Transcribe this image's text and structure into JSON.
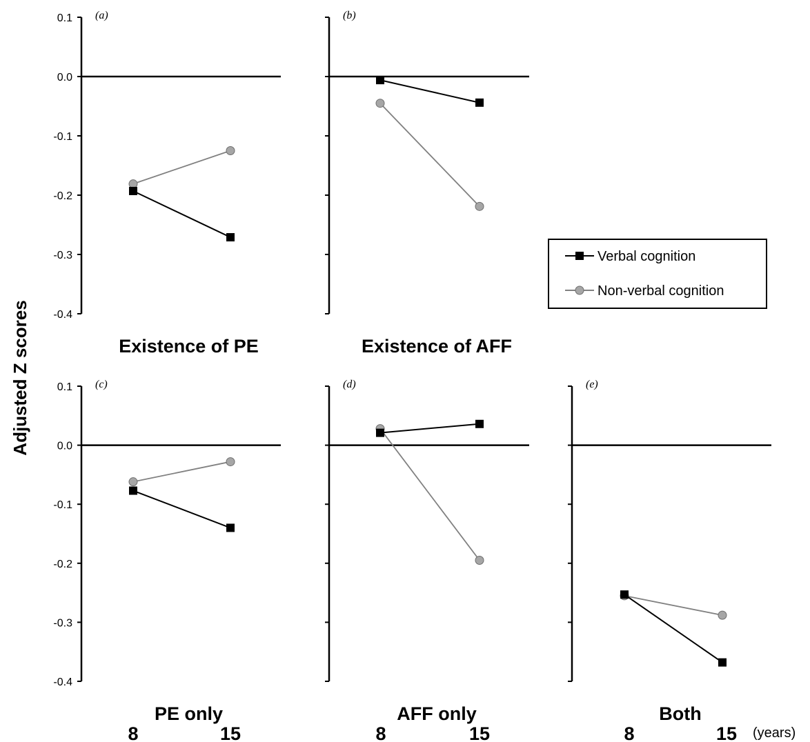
{
  "figure": {
    "ylabel": "Adjusted Z scores",
    "x_unit": "(years)",
    "x_ticks": [
      "8",
      "15"
    ],
    "y_ticks": [
      "0.1",
      "0.0",
      "-0.1",
      "-0.2",
      "-0.3",
      "-0.4"
    ],
    "legend": {
      "entries": [
        "Verbal cognition",
        "Non-verbal cognition"
      ]
    },
    "colors": {
      "verbal": "#000000",
      "nonverbal_line": "#808080",
      "nonverbal_marker": "#a6a6a6"
    }
  },
  "chart_data": [
    {
      "panel": "(a)",
      "type": "line",
      "title": "Existence of PE",
      "x": [
        "8",
        "15"
      ],
      "ylim": [
        -0.4,
        0.1
      ],
      "series": [
        {
          "name": "Verbal cognition",
          "values": [
            -0.193,
            -0.271
          ]
        },
        {
          "name": "Non-verbal cognition",
          "values": [
            -0.181,
            -0.125
          ]
        }
      ]
    },
    {
      "panel": "(b)",
      "type": "line",
      "title": "Existence of AFF",
      "x": [
        "8",
        "15"
      ],
      "ylim": [
        -0.4,
        0.1
      ],
      "series": [
        {
          "name": "Verbal cognition",
          "values": [
            -0.006,
            -0.044
          ]
        },
        {
          "name": "Non-verbal cognition",
          "values": [
            -0.045,
            -0.219
          ]
        }
      ]
    },
    {
      "panel": "(c)",
      "type": "line",
      "title": "PE only",
      "x": [
        "8",
        "15"
      ],
      "ylim": [
        -0.4,
        0.1
      ],
      "series": [
        {
          "name": "Verbal cognition",
          "values": [
            -0.077,
            -0.14
          ]
        },
        {
          "name": "Non-verbal cognition",
          "values": [
            -0.062,
            -0.028
          ]
        }
      ]
    },
    {
      "panel": "(d)",
      "type": "line",
      "title": "AFF only",
      "x": [
        "8",
        "15"
      ],
      "ylim": [
        -0.4,
        0.1
      ],
      "series": [
        {
          "name": "Verbal cognition",
          "values": [
            0.021,
            0.036
          ]
        },
        {
          "name": "Non-verbal cognition",
          "values": [
            0.028,
            -0.195
          ]
        }
      ]
    },
    {
      "panel": "(e)",
      "type": "line",
      "title": "Both",
      "x": [
        "8",
        "15"
      ],
      "ylim": [
        -0.4,
        0.1
      ],
      "series": [
        {
          "name": "Verbal cognition",
          "values": [
            -0.253,
            -0.368
          ]
        },
        {
          "name": "Non-verbal cognition",
          "values": [
            -0.255,
            -0.288
          ]
        }
      ]
    }
  ]
}
